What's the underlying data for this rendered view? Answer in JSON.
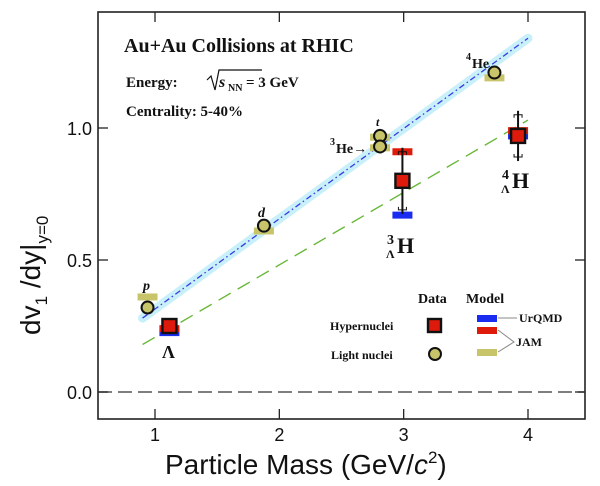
{
  "chart_data": {
    "type": "scatter",
    "title": "Au+Au Collisions at RHIC",
    "annotations": {
      "energy_label": "Energy:",
      "energy_value": "= 3 GeV",
      "energy_sqrt_symbol": "s",
      "energy_sqrt_subscript": "NN",
      "centrality": "Centrality: 5-40%"
    },
    "xlabel": "Particle Mass (GeV/c²)",
    "xlabel_parts": {
      "main": "Particle Mass (GeV/",
      "italic": "c",
      "sup": "2",
      "close": ")"
    },
    "ylabel": "dv1/dy|y=0",
    "ylabel_parts": {
      "main": "dv",
      "sub1": "1",
      "mid": " /dy|",
      "sub2": "y=0"
    },
    "xlim": [
      0.55,
      4.45
    ],
    "ylim": [
      -0.1,
      1.5
    ],
    "x_ticks": [
      1,
      2,
      3,
      4
    ],
    "x_tick_labels": [
      "1",
      "2",
      "3",
      "4"
    ],
    "y_ticks": [
      0.0,
      0.5,
      1.0
    ],
    "y_tick_labels": [
      "0.0",
      "0.5",
      "1.0"
    ],
    "zero_line": 0.0,
    "grid": false,
    "legend_position": "bottom-right",
    "legend": {
      "data_header": "Data",
      "model_header": "Model",
      "hypernuclei_label": "Hypernuclei",
      "light_nuclei_label": "Light nuclei",
      "urqmd_label": "UrQMD",
      "jam_label": "JAM"
    },
    "colors": {
      "urqmd": "#1a2cf0",
      "jam_hyper": "#e01a0a",
      "jam_light": "#c8c46a",
      "light_marker_fill": "#c8c46a",
      "hyper_marker_fill": "#dd1a0c",
      "light_fit": "#3a3ae0",
      "light_fit_band": "#c8f0fb",
      "hyper_fit": "#6ab83a"
    },
    "series": [
      {
        "name": "Light nuclei",
        "marker": "circle",
        "points": [
          {
            "label": "p",
            "x": 0.94,
            "y": 0.32
          },
          {
            "label": "d",
            "x": 1.876,
            "y": 0.63
          },
          {
            "label": "t",
            "x": 2.81,
            "y": 0.97
          },
          {
            "label": "3He",
            "x": 2.81,
            "y": 0.93
          },
          {
            "label": "4He",
            "x": 3.73,
            "y": 1.21
          }
        ]
      },
      {
        "name": "Hypernuclei",
        "marker": "square",
        "points": [
          {
            "label": "Λ",
            "x": 1.116,
            "y": 0.25,
            "err": 0.0
          },
          {
            "label": "3ΛH",
            "x": 2.99,
            "y": 0.8,
            "err": 0.11
          },
          {
            "label": "4ΛH",
            "x": 3.92,
            "y": 0.97,
            "err": 0.08
          }
        ]
      },
      {
        "name": "JAM (light nuclei)",
        "marker": "bar",
        "points": [
          {
            "label": "p",
            "x": 0.94,
            "y": 0.36
          },
          {
            "label": "d",
            "x": 1.876,
            "y": 0.61
          },
          {
            "label": "t",
            "x": 2.81,
            "y": 0.965
          },
          {
            "label": "3He",
            "x": 2.81,
            "y": 0.925
          },
          {
            "label": "4He",
            "x": 3.73,
            "y": 1.19
          }
        ]
      },
      {
        "name": "JAM (hypernuclei)",
        "marker": "bar",
        "points": [
          {
            "label": "Λ",
            "x": 1.116,
            "y": 0.24
          },
          {
            "label": "3ΛH",
            "x": 2.99,
            "y": 0.91
          },
          {
            "label": "4ΛH",
            "x": 3.92,
            "y": 0.99
          }
        ]
      },
      {
        "name": "UrQMD (hypernuclei)",
        "marker": "bar",
        "points": [
          {
            "label": "Λ",
            "x": 1.116,
            "y": 0.225
          },
          {
            "label": "3ΛH",
            "x": 2.99,
            "y": 0.67
          },
          {
            "label": "4ΛH",
            "x": 3.92,
            "y": 0.97
          }
        ]
      }
    ],
    "fits": [
      {
        "name": "Light nuclei fit",
        "style": "dash-dot",
        "x": [
          0.9,
          4.0
        ],
        "y": [
          0.28,
          1.34
        ]
      },
      {
        "name": "Hypernuclei fit",
        "style": "dashed",
        "x": [
          0.9,
          4.0
        ],
        "y": [
          0.18,
          1.03
        ]
      }
    ],
    "point_labels": {
      "p": "p",
      "d": "d",
      "t": "t",
      "he3": "He→",
      "he3_sup": "3",
      "he4": "He",
      "he4_sup": "4",
      "lambda": "Λ",
      "h3l_sup": "3",
      "h3l_sub": "Λ",
      "h3l_main": "H",
      "h4l_sup": "4",
      "h4l_sub": "Λ",
      "h4l_main": "H"
    }
  }
}
